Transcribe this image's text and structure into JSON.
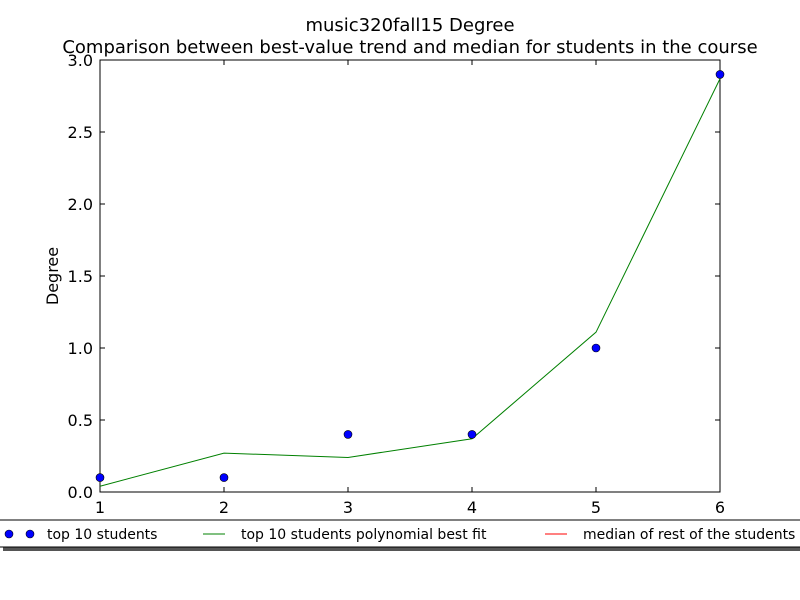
{
  "chart_data": {
    "type": "scatter",
    "title": "music320fall15 Degree",
    "subtitle": "Comparison between best-value trend and median for students in the course",
    "ylabel": "Degree",
    "xlabel": "",
    "xlim": [
      1,
      6
    ],
    "ylim": [
      0,
      3.0
    ],
    "x_ticks": [
      "1",
      "2",
      "3",
      "4",
      "5",
      "6"
    ],
    "y_ticks": [
      "0.0",
      "0.5",
      "1.0",
      "1.5",
      "2.0",
      "2.5",
      "3.0"
    ],
    "grid": false,
    "legend_position": "bottom",
    "series": [
      {
        "name": "top 10 students",
        "kind": "points",
        "color": "#0000ff",
        "x": [
          1,
          2,
          3,
          4,
          5,
          6
        ],
        "y": [
          0.1,
          0.1,
          0.4,
          0.4,
          1.0,
          2.9
        ]
      },
      {
        "name": "top 10 students polynomial best fit",
        "kind": "line",
        "color": "#008000",
        "x": [
          1,
          2,
          3,
          4,
          5,
          6
        ],
        "y": [
          0.04,
          0.27,
          0.24,
          0.37,
          1.11,
          2.87
        ]
      },
      {
        "name": "median of rest of the students",
        "kind": "line",
        "color": "#ff0000",
        "x": [],
        "y": []
      }
    ]
  }
}
